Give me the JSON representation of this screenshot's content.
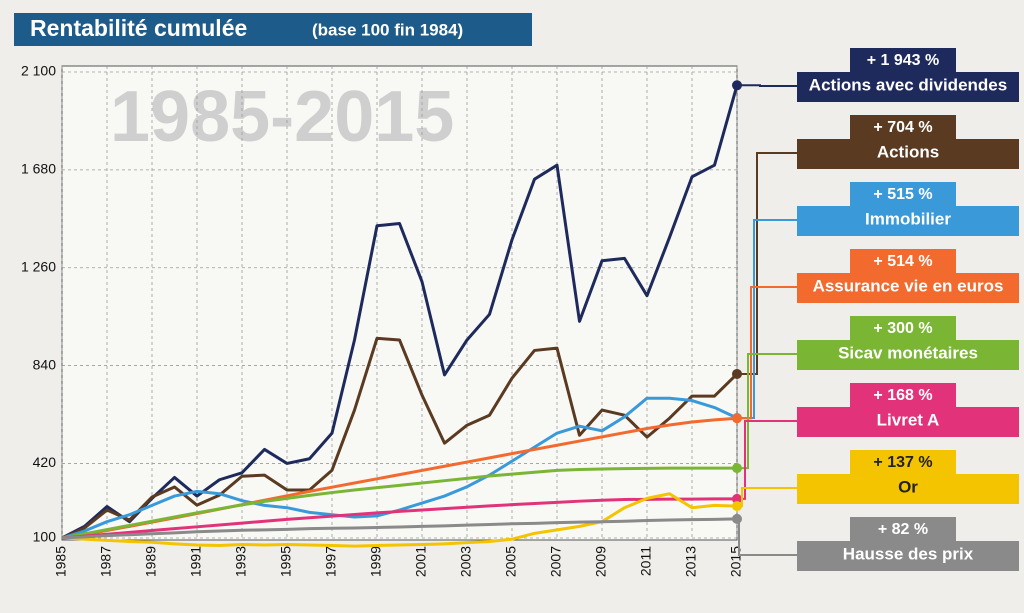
{
  "chart_data": {
    "type": "line",
    "title": "Rentabilité cumulée",
    "subtitle": "(base 100 fin 1984)",
    "annotation": "1985-2015",
    "x": [
      1985,
      1986,
      1987,
      1988,
      1989,
      1990,
      1991,
      1992,
      1993,
      1994,
      1995,
      1996,
      1997,
      1998,
      1999,
      2000,
      2001,
      2002,
      2003,
      2004,
      2005,
      2006,
      2007,
      2008,
      2009,
      2010,
      2011,
      2012,
      2013,
      2014,
      2015
    ],
    "xlim": [
      1985,
      2015
    ],
    "xticks": [
      1985,
      1987,
      1989,
      1991,
      1993,
      1995,
      1997,
      1999,
      2001,
      2003,
      2005,
      2007,
      2009,
      2011,
      2013,
      2015
    ],
    "ylim": [
      100,
      2100
    ],
    "yticks": [
      100,
      420,
      840,
      {
        "value": 1260,
        "label": "1 260"
      },
      {
        "value": 1680,
        "label": "1 680"
      },
      {
        "value": 2100,
        "label": "2 100"
      }
    ],
    "grid": true,
    "series": [
      {
        "name": "Actions avec dividendes",
        "label": "+ 1 943 %",
        "color": "#1f2a5c",
        "values": [
          100,
          150,
          235,
          170,
          270,
          360,
          280,
          350,
          380,
          480,
          420,
          440,
          550,
          950,
          1440,
          1450,
          1200,
          800,
          950,
          1060,
          1380,
          1640,
          1700,
          1030,
          1290,
          1300,
          1140,
          1390,
          1650,
          1700,
          2043
        ]
      },
      {
        "name": "Actions",
        "label": "+ 704 %",
        "color": "#5b3a22",
        "values": [
          100,
          143,
          220,
          177,
          276,
          319,
          241,
          284,
          365,
          370,
          306,
          306,
          391,
          649,
          957,
          950,
          713,
          507,
          584,
          627,
          786,
          905,
          915,
          541,
          649,
          627,
          533,
          614,
          709,
          709,
          804
        ]
      },
      {
        "name": "Immobilier",
        "label": "+ 515 %",
        "color": "#3a9ad9",
        "values": [
          100,
          130,
          170,
          200,
          240,
          280,
          300,
          290,
          260,
          240,
          230,
          210,
          200,
          190,
          195,
          220,
          250,
          280,
          320,
          370,
          430,
          490,
          550,
          580,
          560,
          620,
          700,
          700,
          690,
          660,
          615
        ]
      },
      {
        "name": "Assurance vie en euros",
        "label": "+ 514 %",
        "color": "#f26a2e",
        "values": [
          100,
          115,
          132,
          150,
          168,
          186,
          205,
          224,
          243,
          262,
          281,
          300,
          318,
          336,
          354,
          372,
          390,
          408,
          426,
          444,
          462,
          480,
          498,
          516,
          534,
          552,
          570,
          585,
          598,
          607,
          614
        ]
      },
      {
        "name": "Sicav monétaires",
        "label": "+ 300 %",
        "color": "#7ab534",
        "values": [
          100,
          118,
          136,
          154,
          172,
          190,
          208,
          225,
          242,
          257,
          270,
          283,
          295,
          306,
          316,
          326,
          336,
          346,
          356,
          366,
          374,
          382,
          390,
          394,
          396,
          398,
          399,
          400,
          400,
          400,
          400
        ]
      },
      {
        "name": "Livret A",
        "label": "+ 168 %",
        "color": "#e2337a",
        "values": [
          100,
          108,
          116,
          124,
          132,
          140,
          148,
          156,
          164,
          172,
          180,
          187,
          194,
          201,
          208,
          214,
          220,
          226,
          232,
          238,
          243,
          248,
          253,
          258,
          262,
          265,
          266,
          267,
          267,
          268,
          268
        ]
      },
      {
        "name": "Or",
        "label": "+ 137 %",
        "color": "#f5c400",
        "values": [
          100,
          95,
          90,
          85,
          82,
          75,
          70,
          68,
          72,
          70,
          72,
          70,
          68,
          65,
          68,
          70,
          72,
          75,
          80,
          85,
          95,
          120,
          135,
          150,
          170,
          230,
          270,
          290,
          230,
          240,
          237
        ]
      },
      {
        "name": "Hausse des prix",
        "label": "+ 82 %",
        "color": "#8a8a8a",
        "values": [
          100,
          105,
          110,
          114,
          118,
          122,
          127,
          130,
          133,
          135,
          137,
          140,
          142,
          143,
          145,
          147,
          150,
          152,
          155,
          158,
          161,
          163,
          166,
          168,
          170,
          172,
          175,
          177,
          179,
          180,
          182
        ]
      }
    ]
  }
}
